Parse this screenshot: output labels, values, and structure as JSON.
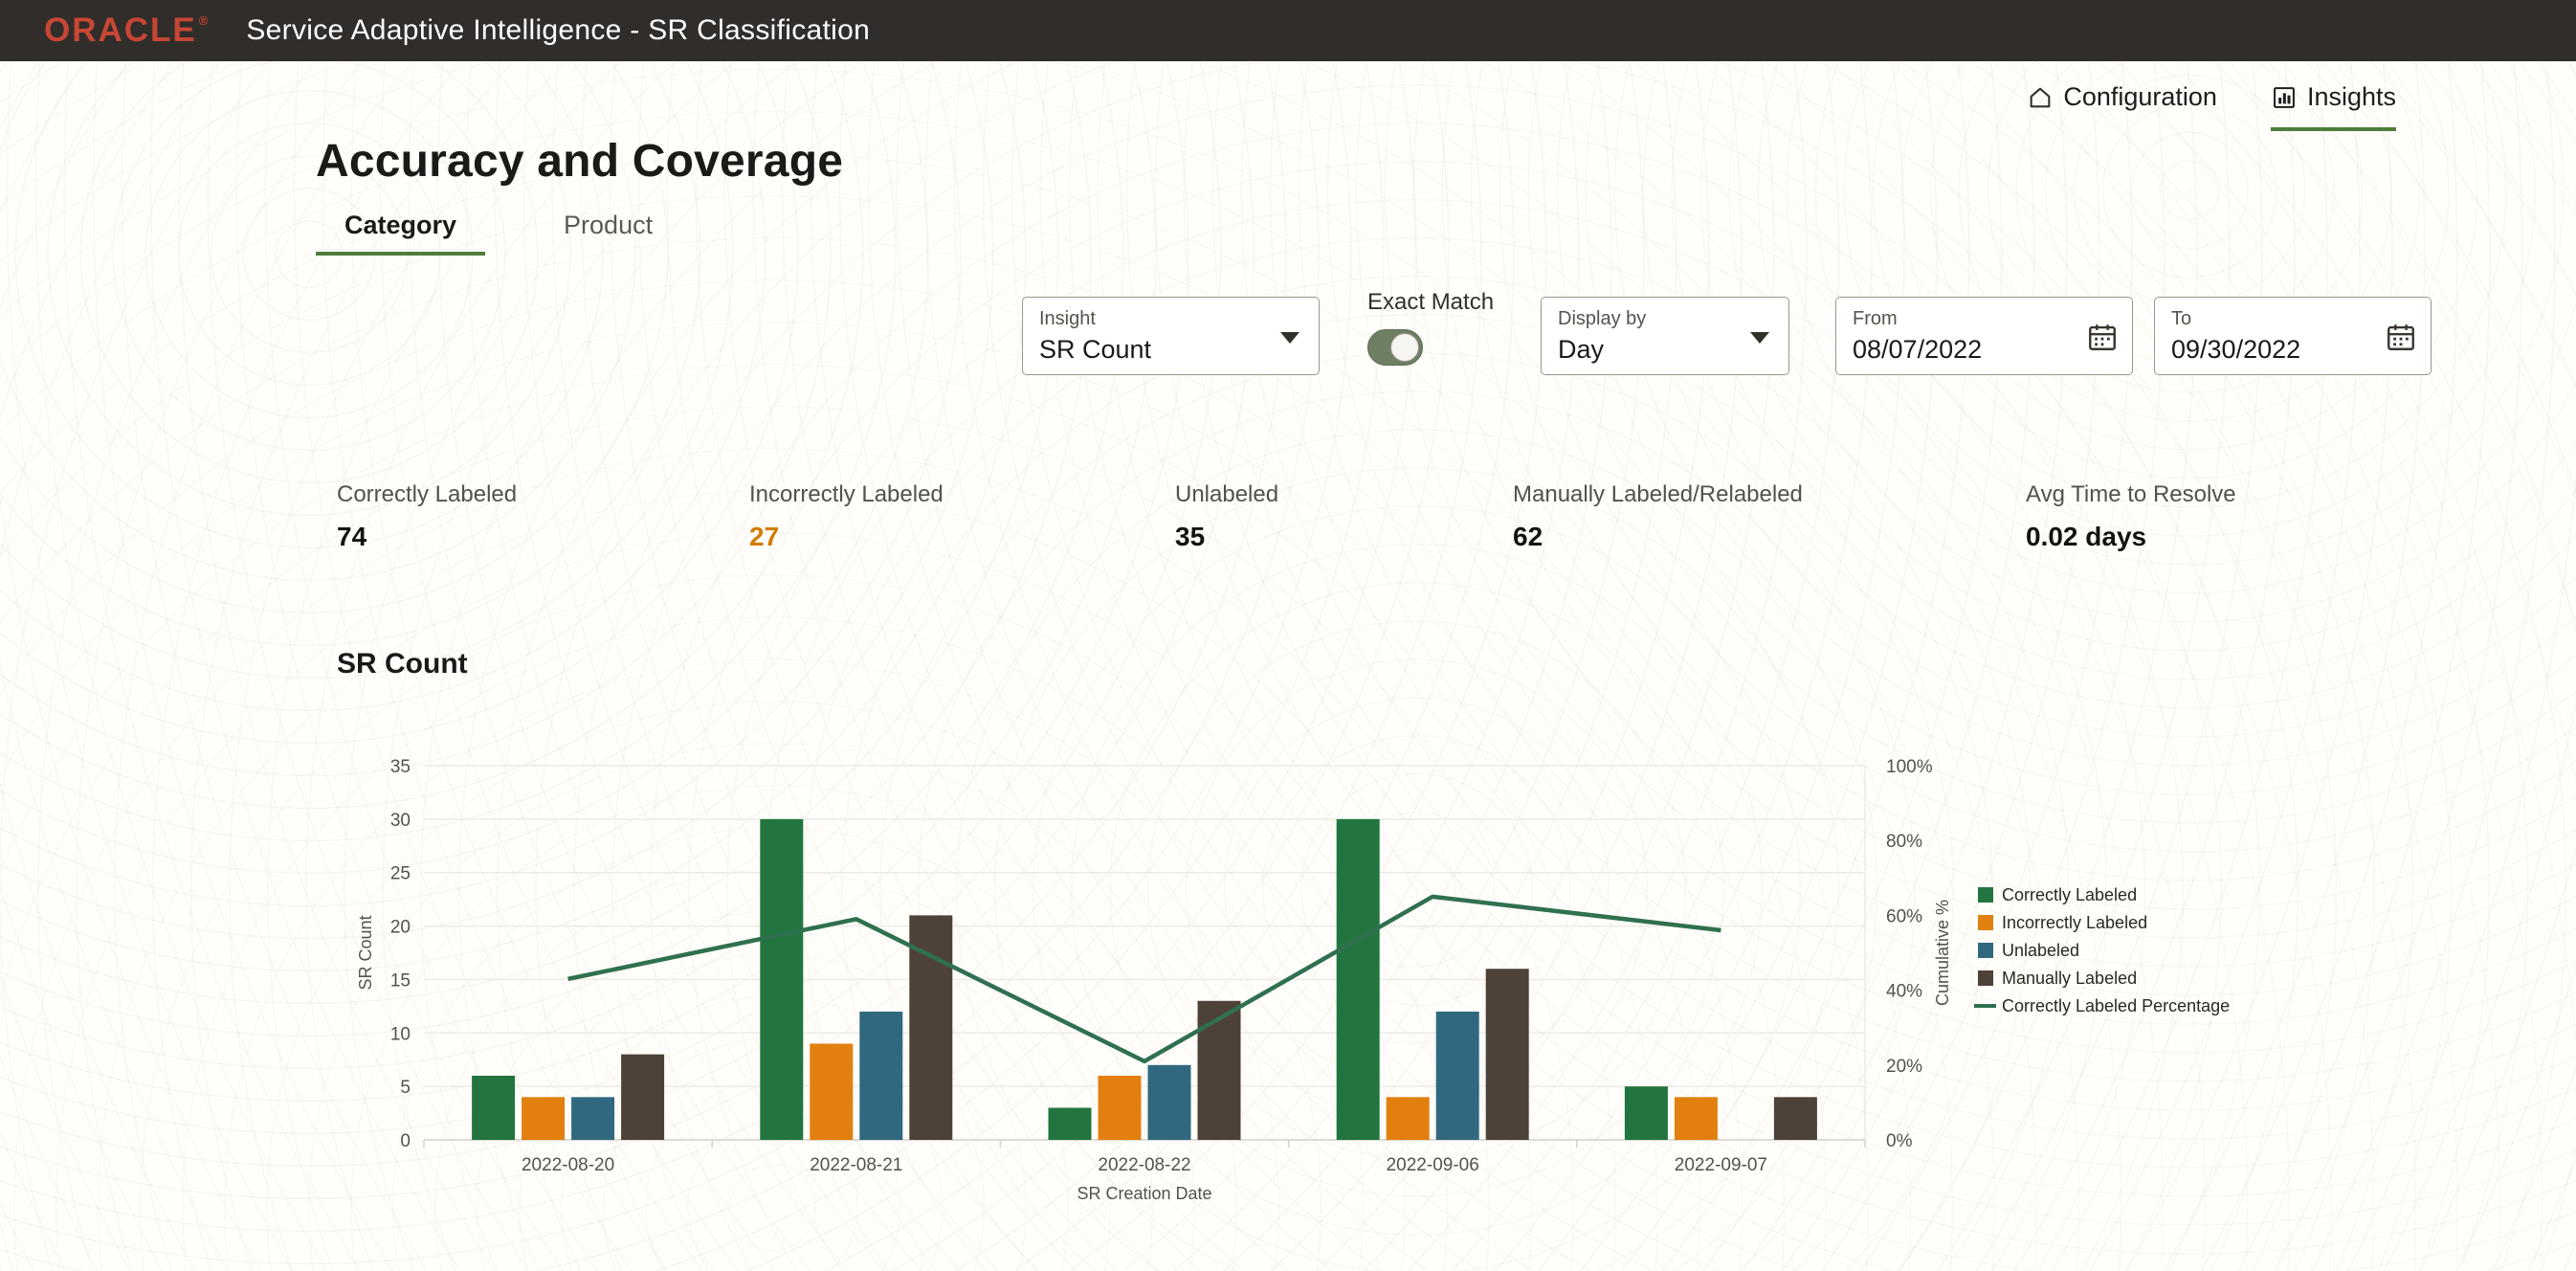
{
  "header": {
    "brand": "ORACLE",
    "brand_reg": "®",
    "app_title": "Service Adaptive Intelligence - SR Classification"
  },
  "nav": {
    "configuration": "Configuration",
    "insights": "Insights"
  },
  "page": {
    "title": "Accuracy and Coverage",
    "tabs": [
      {
        "label": "Category",
        "active": true
      },
      {
        "label": "Product",
        "active": false
      }
    ]
  },
  "filters": {
    "insight": {
      "label": "Insight",
      "value": "SR Count"
    },
    "exact_match": {
      "label": "Exact Match",
      "state": "on"
    },
    "display_by": {
      "label": "Display by",
      "value": "Day"
    },
    "from": {
      "label": "From",
      "value": "08/07/2022"
    },
    "to": {
      "label": "To",
      "value": "09/30/2022"
    }
  },
  "stats": [
    {
      "label": "Correctly Labeled",
      "value": "74",
      "color": "#16130f"
    },
    {
      "label": "Incorrectly Labeled",
      "value": "27",
      "color": "#d47b00"
    },
    {
      "label": "Unlabeled",
      "value": "35",
      "color": "#16130f"
    },
    {
      "label": "Manually Labeled/Relabeled",
      "value": "62",
      "color": "#16130f"
    },
    {
      "label": "Avg Time to Resolve",
      "value": "0.02 days",
      "color": "#16130f"
    }
  ],
  "chart_data": {
    "type": "combo-bar-line",
    "title": "SR Count",
    "categories": [
      "2022-08-20",
      "2022-08-21",
      "2022-08-22",
      "2022-09-06",
      "2022-09-07"
    ],
    "series": [
      {
        "name": "Correctly Labeled",
        "type": "bar",
        "axis": "left",
        "color": "#22753f",
        "values": [
          6,
          30,
          3,
          30,
          5
        ]
      },
      {
        "name": "Incorrectly Labeled",
        "type": "bar",
        "axis": "left",
        "color": "#e2800f",
        "values": [
          4,
          9,
          6,
          4,
          4
        ]
      },
      {
        "name": "Unlabeled",
        "type": "bar",
        "axis": "left",
        "color": "#30687f",
        "values": [
          4,
          12,
          7,
          12,
          0
        ]
      },
      {
        "name": "Manually Labeled",
        "type": "bar",
        "axis": "left",
        "color": "#4e4138",
        "values": [
          8,
          21,
          13,
          16,
          4
        ]
      },
      {
        "name": "Correctly Labeled Percentage",
        "type": "line",
        "axis": "right",
        "color": "#2f7050",
        "values": [
          43,
          59,
          21,
          65,
          56
        ]
      }
    ],
    "xlabel": "SR Creation Date",
    "ylabel_left": "SR Count",
    "ylabel_right": "Cumulative %",
    "ylim_left": [
      0,
      35
    ],
    "ylim_right": [
      0,
      100
    ],
    "yticks_left": [
      0,
      5,
      10,
      15,
      20,
      25,
      30,
      35
    ],
    "yticks_right": [
      "0%",
      "20%",
      "40%",
      "60%",
      "80%",
      "100%"
    ],
    "grid": true,
    "legend_position": "right"
  },
  "colors": {
    "header_bg": "#312d2a",
    "brand_red": "#c74634",
    "accent_green": "#4f7d39",
    "grid": "#edebe6"
  }
}
